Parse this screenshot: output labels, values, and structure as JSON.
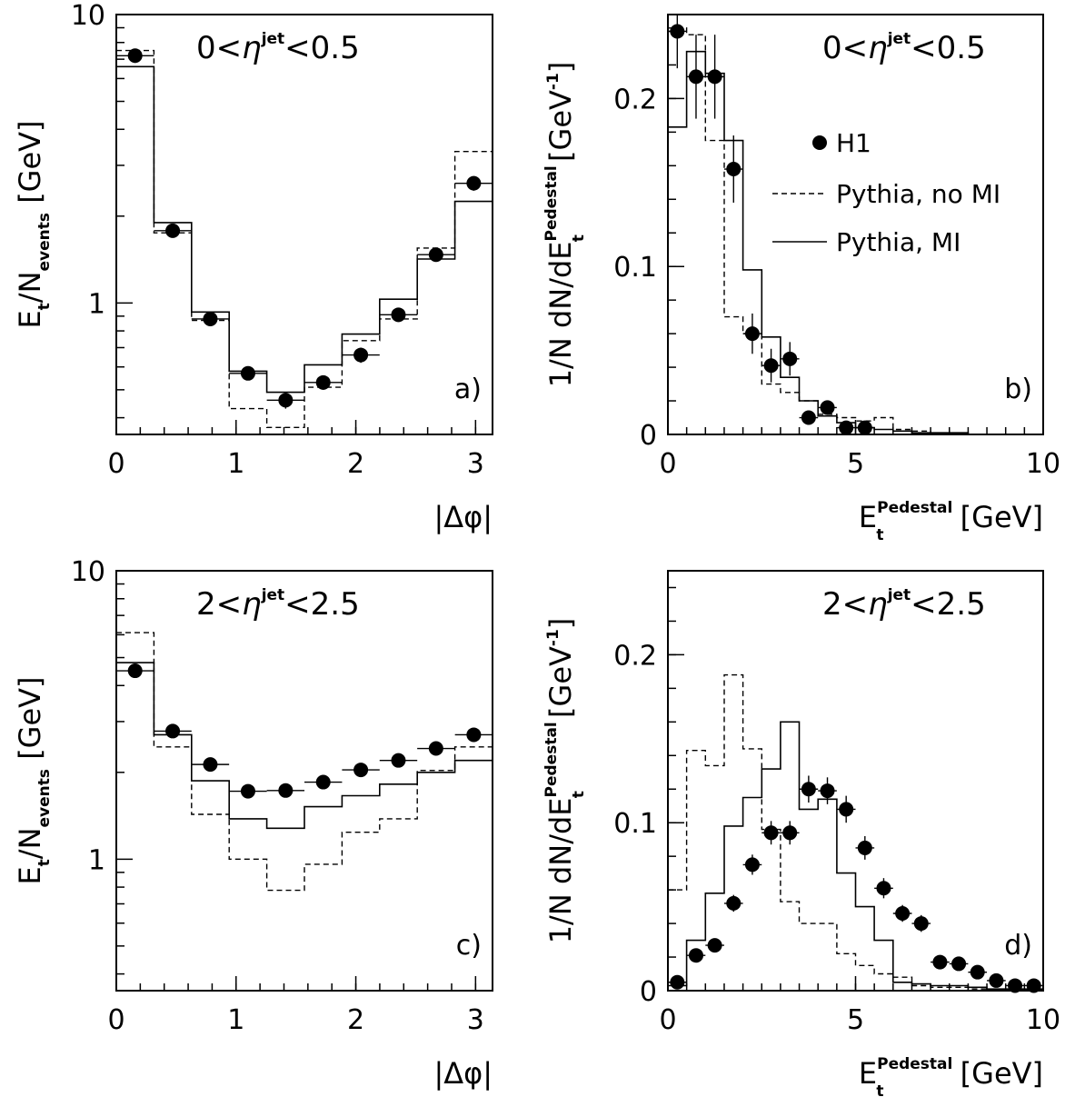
{
  "legend": {
    "h1": "H1",
    "nomi": "Pythia, no MI",
    "mi": "Pythia, MI"
  },
  "chart_data": [
    {
      "id": "a",
      "type": "histogram",
      "tag": "a)",
      "annotation": {
        "pre": "0<",
        "sym": "η",
        "sup": "jet",
        "post": "<0.5"
      },
      "xlabel": "|Δφ|",
      "ylabel": {
        "main": "E",
        "sub": "t",
        "mid": "/N",
        "sub2": "events",
        "unit": " [GeV]"
      },
      "yscale": "log",
      "xlim": [
        0,
        3.1416
      ],
      "ylim": [
        0.35,
        10
      ],
      "xticks": [
        0,
        1,
        2,
        3
      ],
      "yticks": [
        1,
        10
      ],
      "bins": [
        0,
        0.3142,
        0.6283,
        0.9425,
        1.2566,
        1.5708,
        1.885,
        2.1991,
        2.5133,
        2.8274,
        3.1416
      ],
      "mi": [
        6.6,
        1.9,
        0.93,
        0.58,
        0.49,
        0.61,
        0.78,
        1.03,
        1.42,
        2.25
      ],
      "nomi": [
        7.5,
        1.75,
        0.87,
        0.43,
        0.37,
        0.51,
        0.74,
        0.88,
        1.55,
        3.35
      ],
      "data_x": [
        0.157,
        0.471,
        0.785,
        1.1,
        1.414,
        1.728,
        2.042,
        2.356,
        2.67,
        2.985
      ],
      "data_y": [
        7.2,
        1.78,
        0.88,
        0.57,
        0.46,
        0.53,
        0.66,
        0.91,
        1.47,
        2.6
      ],
      "data_err": [
        0.4,
        0.07,
        0.04,
        0.03,
        0.03,
        0.03,
        0.04,
        0.05,
        0.07,
        0.15
      ]
    },
    {
      "id": "b",
      "type": "histogram",
      "tag": "b)",
      "annotation": {
        "pre": "0<",
        "sym": "η",
        "sup": "jet",
        "post": "<0.5"
      },
      "xlabel": {
        "main": "E",
        "sub": "t",
        "sup": "Pedestal",
        "unit": " [GeV]"
      },
      "ylabel": {
        "pre": "1/N dN/dE",
        "sub": "t",
        "sup": "Pedestal",
        "unit": " [GeV",
        "unitsup": "-1",
        "close": "]"
      },
      "yscale": "linear",
      "xlim": [
        0,
        10
      ],
      "ylim": [
        0,
        0.25
      ],
      "xticks": [
        0,
        5,
        10
      ],
      "yticks": [
        0,
        0.1,
        0.2
      ],
      "yticklabels": [
        "0",
        "0.1",
        "0.2"
      ],
      "bins": [
        0,
        0.5,
        1,
        1.5,
        2,
        2.5,
        3,
        3.5,
        4,
        4.5,
        5,
        5.5,
        6,
        6.5,
        7,
        7.5,
        8,
        8.5,
        9,
        9.5,
        10
      ],
      "mi": [
        0.183,
        0.228,
        0.215,
        0.175,
        0.098,
        0.058,
        0.034,
        0.02,
        0.011,
        0.007,
        0.004,
        0.003,
        0.002,
        0.001,
        0.001,
        0.001,
        0.0,
        0.0,
        0.0,
        0.0
      ],
      "nomi": [
        0.242,
        0.238,
        0.175,
        0.07,
        0.06,
        0.03,
        0.025,
        0.02,
        0.012,
        0.01,
        0.008,
        0.01,
        0.003,
        0.002,
        0.001,
        0.001,
        0.0,
        0.0,
        0.0,
        0.0
      ],
      "data_x": [
        0.25,
        0.75,
        1.25,
        1.75,
        2.25,
        2.75,
        3.25,
        3.75,
        4.25,
        4.75,
        5.25
      ],
      "data_y": [
        0.24,
        0.213,
        0.213,
        0.158,
        0.06,
        0.041,
        0.045,
        0.01,
        0.016,
        0.004,
        0.004
      ],
      "data_err": [
        0.022,
        0.025,
        0.025,
        0.02,
        0.012,
        0.01,
        0.01,
        0.004,
        0.004,
        0.002,
        0.002
      ]
    },
    {
      "id": "c",
      "type": "histogram",
      "tag": "c)",
      "annotation": {
        "pre": "2<",
        "sym": "η",
        "sup": "jet",
        "post": "<2.5"
      },
      "xlabel": "|Δφ|",
      "ylabel": {
        "main": "E",
        "sub": "t",
        "mid": "/N",
        "sub2": "events",
        "unit": " [GeV]"
      },
      "yscale": "log",
      "xlim": [
        0,
        3.1416
      ],
      "ylim": [
        0.35,
        10
      ],
      "xticks": [
        0,
        1,
        2,
        3
      ],
      "yticks": [
        1,
        10
      ],
      "bins": [
        0,
        0.3142,
        0.6283,
        0.9425,
        1.2566,
        1.5708,
        1.885,
        2.1991,
        2.5133,
        2.8274,
        3.1416
      ],
      "mi": [
        4.8,
        2.7,
        1.87,
        1.38,
        1.28,
        1.52,
        1.66,
        1.82,
        2.0,
        2.2
      ],
      "nomi": [
        6.1,
        2.45,
        1.43,
        1.0,
        0.78,
        0.96,
        1.24,
        1.38,
        2.03,
        2.45
      ],
      "data_x": [
        0.157,
        0.471,
        0.785,
        1.1,
        1.414,
        1.728,
        2.042,
        2.356,
        2.67,
        2.985
      ],
      "data_y": [
        4.5,
        2.78,
        2.13,
        1.72,
        1.73,
        1.85,
        2.04,
        2.2,
        2.42,
        2.7
      ],
      "data_err": [
        0.2,
        0.08,
        0.06,
        0.05,
        0.05,
        0.05,
        0.06,
        0.06,
        0.07,
        0.08
      ]
    },
    {
      "id": "d",
      "type": "histogram",
      "tag": "d)",
      "annotation": {
        "pre": "2<",
        "sym": "η",
        "sup": "jet",
        "post": "<2.5"
      },
      "xlabel": {
        "main": "E",
        "sub": "t",
        "sup": "Pedestal",
        "unit": " [GeV]"
      },
      "ylabel": {
        "pre": "1/N dN/dE",
        "sub": "t",
        "sup": "Pedestal",
        "unit": " [GeV",
        "unitsup": "-1",
        "close": "]"
      },
      "yscale": "linear",
      "xlim": [
        0,
        10
      ],
      "ylim": [
        0,
        0.25
      ],
      "xticks": [
        0,
        5,
        10
      ],
      "yticks": [
        0,
        0.1,
        0.2
      ],
      "yticklabels": [
        "0",
        "0.1",
        "0.2"
      ],
      "bins": [
        0,
        0.5,
        1,
        1.5,
        2,
        2.5,
        3,
        3.5,
        4,
        4.5,
        5,
        5.5,
        6,
        6.5,
        7,
        7.5,
        8,
        8.5,
        9,
        9.5,
        10
      ],
      "mi": [
        0.003,
        0.03,
        0.058,
        0.098,
        0.115,
        0.132,
        0.16,
        0.108,
        0.114,
        0.07,
        0.05,
        0.03,
        0.005,
        0.004,
        0.003,
        0.003,
        0.002,
        0.001,
        0.001,
        0.001
      ],
      "nomi": [
        0.06,
        0.143,
        0.134,
        0.188,
        0.144,
        0.096,
        0.053,
        0.04,
        0.04,
        0.022,
        0.015,
        0.01,
        0.008,
        0.003,
        0.002,
        0.002,
        0.001,
        0.0,
        0.0,
        0.0
      ],
      "data_x": [
        0.25,
        0.75,
        1.25,
        1.75,
        2.25,
        2.75,
        3.25,
        3.75,
        4.25,
        4.75,
        5.25,
        5.75,
        6.25,
        6.75,
        7.25,
        7.75,
        8.25,
        8.75,
        9.25,
        9.75
      ],
      "data_y": [
        0.005,
        0.021,
        0.027,
        0.052,
        0.075,
        0.094,
        0.094,
        0.12,
        0.119,
        0.108,
        0.085,
        0.061,
        0.046,
        0.04,
        0.017,
        0.016,
        0.011,
        0.006,
        0.003,
        0.003
      ],
      "data_err": [
        0.002,
        0.003,
        0.003,
        0.005,
        0.006,
        0.007,
        0.007,
        0.008,
        0.008,
        0.008,
        0.007,
        0.006,
        0.005,
        0.005,
        0.003,
        0.003,
        0.003,
        0.002,
        0.001,
        0.001
      ]
    }
  ]
}
